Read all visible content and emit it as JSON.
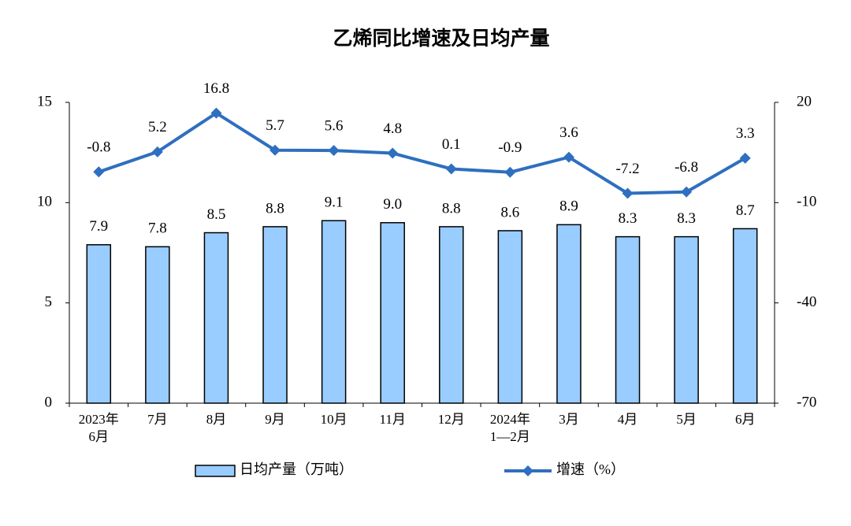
{
  "chart_data": {
    "type": "bar_line",
    "title": "乙烯同比增速及日均产量",
    "categories": [
      [
        "2023年",
        "6月"
      ],
      [
        "7月"
      ],
      [
        "8月"
      ],
      [
        "9月"
      ],
      [
        "10月"
      ],
      [
        "11月"
      ],
      [
        "12月"
      ],
      [
        "2024年",
        "1—2月"
      ],
      [
        "3月"
      ],
      [
        "4月"
      ],
      [
        "5月"
      ],
      [
        "6月"
      ]
    ],
    "series": [
      {
        "name": "日均产量（万吨）",
        "type": "bar",
        "color": "#99ccff",
        "values": [
          7.9,
          7.8,
          8.5,
          8.8,
          9.1,
          9.0,
          8.8,
          8.6,
          8.9,
          8.3,
          8.3,
          8.7
        ],
        "value_labels": [
          "7.9",
          "7.8",
          "8.5",
          "8.8",
          "9.1",
          "9.0",
          "8.8",
          "8.6",
          "8.9",
          "8.3",
          "8.3",
          "8.7"
        ]
      },
      {
        "name": "增速（%）",
        "type": "line",
        "axis": "y2",
        "color": "#2e6fbf",
        "values": [
          -0.8,
          5.2,
          16.8,
          5.7,
          5.6,
          4.8,
          0.1,
          -0.9,
          3.6,
          -7.2,
          -6.8,
          3.3
        ],
        "value_labels": [
          "-0.8",
          "5.2",
          "16.8",
          "5.7",
          "5.6",
          "4.8",
          "0.1",
          "-0.9",
          "3.6",
          "-7.2",
          "-6.8",
          "3.3"
        ]
      }
    ],
    "ylim": [
      0,
      15
    ],
    "yticks": [
      0,
      5,
      10,
      15
    ],
    "y2lim": [
      -70,
      20
    ],
    "y2ticks": [
      -70,
      -40,
      -10,
      20
    ],
    "grid": false
  }
}
